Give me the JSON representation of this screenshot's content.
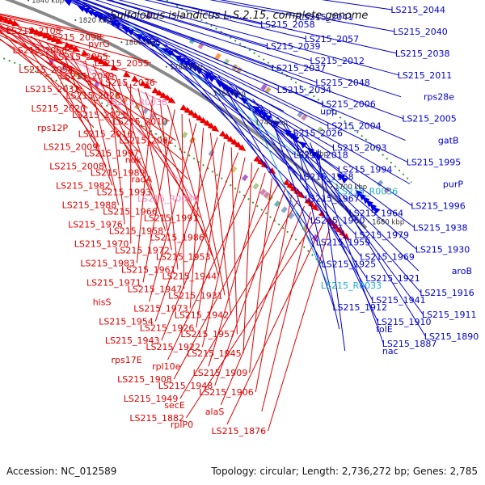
{
  "title": "Sulfolobus islandicus L.S.2.15, complete genome",
  "accession": "Accession: NC_012589",
  "topology": "Topology: circular; Length: 2,736,272 bp; Genes: 2,785",
  "colors": {
    "left_label": "#e00000",
    "right_label": "#0000cc",
    "pink_label": "#ee88bb",
    "cyan_label": "#22aacc",
    "backbone": "#888888",
    "gc_dots": "#339933"
  },
  "scale_ticks": [
    "1900 kbp",
    "1880 kbp",
    "1860 kbp",
    "1840 kbp",
    "1820 kbp",
    "1800 kbp",
    "1780 kbp",
    "1760 kbp",
    "1740 kbp",
    "1720 kbp",
    "1700 kbp",
    "1680 kbp"
  ],
  "left_labels": [
    {
      "text": "LS215_2108",
      "type": "gene"
    },
    {
      "text": "LS215_2098",
      "type": "gene"
    },
    {
      "text": "pyrG",
      "type": "gene"
    },
    {
      "text": "LS215_2068",
      "type": "gene"
    },
    {
      "text": "LS215_2065",
      "type": "gene"
    },
    {
      "text": "LS215_2055",
      "type": "gene"
    },
    {
      "text": "LS215_2054",
      "type": "gene"
    },
    {
      "text": "LS215_2049",
      "type": "gene"
    },
    {
      "text": "LS215_2036",
      "type": "gene"
    },
    {
      "text": "LS215_2032",
      "type": "gene"
    },
    {
      "text": "LS215_2028",
      "type": "gene"
    },
    {
      "text": "LS215_R0038",
      "type": "pink"
    },
    {
      "text": "LS215_2020",
      "type": "gene"
    },
    {
      "text": "LS215_2021",
      "type": "gene"
    },
    {
      "text": "LS215_2010",
      "type": "gene"
    },
    {
      "text": "rps12P",
      "type": "gene"
    },
    {
      "text": "LS215_2016",
      "type": "gene"
    },
    {
      "text": "LS215_2002",
      "type": "gene"
    },
    {
      "text": "LS215_2009",
      "type": "gene"
    },
    {
      "text": "LS215_1997",
      "type": "gene"
    },
    {
      "text": "ndk",
      "type": "gene"
    },
    {
      "text": "LS215_2008",
      "type": "gene"
    },
    {
      "text": "LS215_1989",
      "type": "gene"
    },
    {
      "text": "radA",
      "type": "gene"
    },
    {
      "text": "LS215_1982",
      "type": "gene"
    },
    {
      "text": "LS215_1993",
      "type": "gene"
    },
    {
      "text": "LS215_R0034",
      "type": "pink"
    },
    {
      "text": "LS215_1988",
      "type": "gene"
    },
    {
      "text": "LS215_1966",
      "type": "gene"
    },
    {
      "text": "LS215_1991",
      "type": "gene"
    },
    {
      "text": "LS215_1976",
      "type": "gene"
    },
    {
      "text": "LS215_1958",
      "type": "gene"
    },
    {
      "text": "LS215_1986",
      "type": "gene"
    },
    {
      "text": "LS215_1970",
      "type": "gene"
    },
    {
      "text": "LS215_1972",
      "type": "gene"
    },
    {
      "text": "LS215_1953",
      "type": "gene"
    },
    {
      "text": "LS215_1983",
      "type": "gene"
    },
    {
      "text": "LS215_1961",
      "type": "gene"
    },
    {
      "text": "LS215_1944",
      "type": "gene"
    },
    {
      "text": "LS215_1971",
      "type": "gene"
    },
    {
      "text": "LS215_1947",
      "type": "gene"
    },
    {
      "text": "LS215_1931",
      "type": "gene"
    },
    {
      "text": "hisS",
      "type": "gene"
    },
    {
      "text": "LS215_1973",
      "type": "gene"
    },
    {
      "text": "LS215_1942",
      "type": "gene"
    },
    {
      "text": "LS215_1954",
      "type": "gene"
    },
    {
      "text": "LS215_1926",
      "type": "gene"
    },
    {
      "text": "LS215_1957",
      "type": "gene"
    },
    {
      "text": "LS215_1943",
      "type": "gene"
    },
    {
      "text": "LS215_1922",
      "type": "gene"
    },
    {
      "text": "LS215_1945",
      "type": "gene"
    },
    {
      "text": "rps17E",
      "type": "gene"
    },
    {
      "text": "rpl10e",
      "type": "gene"
    },
    {
      "text": "LS215_1909",
      "type": "gene"
    },
    {
      "text": "LS215_1908",
      "type": "gene"
    },
    {
      "text": "LS215_1948",
      "type": "gene"
    },
    {
      "text": "LS215_1906",
      "type": "gene"
    },
    {
      "text": "LS215_1949",
      "type": "gene"
    },
    {
      "text": "secE",
      "type": "gene"
    },
    {
      "text": "alaS",
      "type": "gene"
    },
    {
      "text": "LS215_1882",
      "type": "gene"
    },
    {
      "text": "rplP0",
      "type": "gene"
    },
    {
      "text": "LS215_1876",
      "type": "gene"
    }
  ],
  "right_labels": [
    {
      "text": "LS215_2044",
      "type": "gene"
    },
    {
      "text": "LS215_2041",
      "type": "gene"
    },
    {
      "text": "LS215_2058",
      "type": "gene"
    },
    {
      "text": "LS215_2040",
      "type": "gene"
    },
    {
      "text": "LS215_2057",
      "type": "gene"
    },
    {
      "text": "LS215_2039",
      "type": "gene"
    },
    {
      "text": "LS215_2038",
      "type": "gene"
    },
    {
      "text": "LS215_2012",
      "type": "gene"
    },
    {
      "text": "LS215_2037",
      "type": "gene"
    },
    {
      "text": "LS215_2011",
      "type": "gene"
    },
    {
      "text": "LS215_2048",
      "type": "gene"
    },
    {
      "text": "LS215_2034",
      "type": "gene"
    },
    {
      "text": "rps28e",
      "type": "gene"
    },
    {
      "text": "LS215_2006",
      "type": "gene"
    },
    {
      "text": "upp",
      "type": "gene"
    },
    {
      "text": "LS215_2005",
      "type": "gene"
    },
    {
      "text": "LS215_2004",
      "type": "gene"
    },
    {
      "text": "LS215_2026",
      "type": "gene"
    },
    {
      "text": "gatB",
      "type": "gene"
    },
    {
      "text": "LS215_2003",
      "type": "gene"
    },
    {
      "text": "LS215_2018",
      "type": "gene"
    },
    {
      "text": "LS215_1995",
      "type": "gene"
    },
    {
      "text": "LS215_1994",
      "type": "gene"
    },
    {
      "text": "LS215_1968",
      "type": "gene"
    },
    {
      "text": "purP",
      "type": "gene"
    },
    {
      "text": "LS215_R0036",
      "type": "cyan"
    },
    {
      "text": "LS215_1967",
      "type": "gene"
    },
    {
      "text": "LS215_1996",
      "type": "gene"
    },
    {
      "text": "LS215_1964",
      "type": "gene"
    },
    {
      "text": "LS215_1960",
      "type": "gene"
    },
    {
      "text": "LS215_1938",
      "type": "gene"
    },
    {
      "text": "LS215_1979",
      "type": "gene"
    },
    {
      "text": "LS215_1959",
      "type": "gene"
    },
    {
      "text": "LS215_1930",
      "type": "gene"
    },
    {
      "text": "LS215_1969",
      "type": "gene"
    },
    {
      "text": "LS215_1925",
      "type": "gene"
    },
    {
      "text": "aroB",
      "type": "gene"
    },
    {
      "text": "LS215_1921",
      "type": "gene"
    },
    {
      "text": "LS215_R0033",
      "type": "cyan"
    },
    {
      "text": "LS215_1916",
      "type": "gene"
    },
    {
      "text": "LS215_1941",
      "type": "gene"
    },
    {
      "text": "LS215_1912",
      "type": "gene"
    },
    {
      "text": "LS215_1911",
      "type": "gene"
    },
    {
      "text": "LS215_1910",
      "type": "gene"
    },
    {
      "text": "folE",
      "type": "gene"
    },
    {
      "text": "LS215_1890",
      "type": "gene"
    },
    {
      "text": "LS215_1887",
      "type": "gene"
    },
    {
      "text": "nac",
      "type": "gene"
    }
  ]
}
